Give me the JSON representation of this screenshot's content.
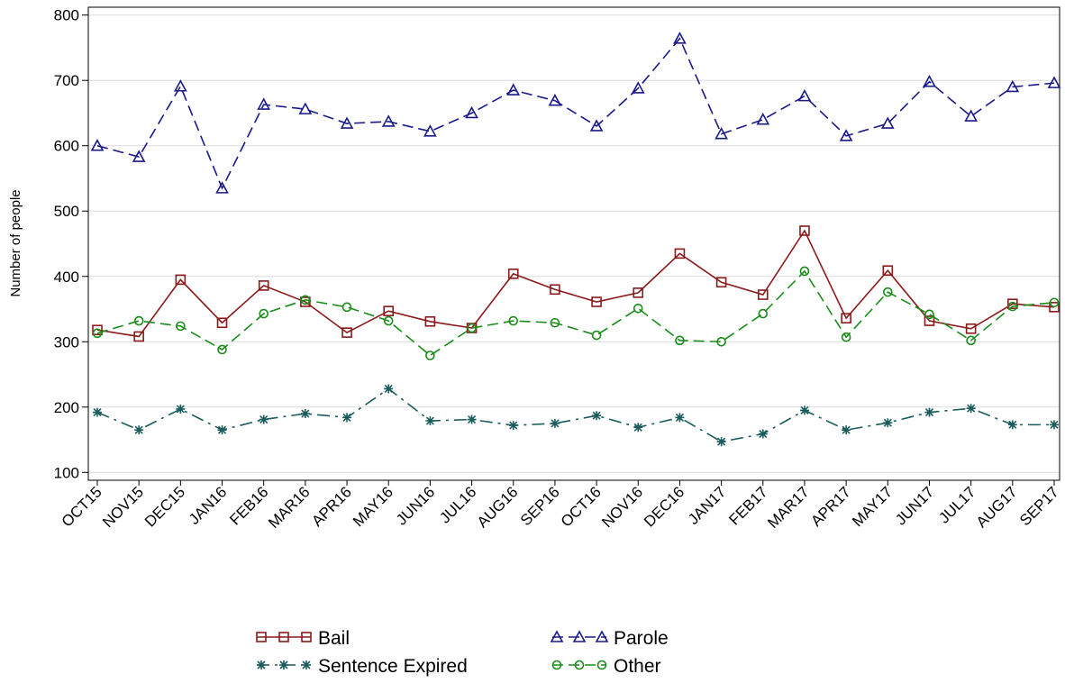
{
  "chart_data": {
    "type": "line",
    "y_label": "Number of people",
    "categories": [
      "OCT15",
      "NOV15",
      "DEC15",
      "JAN16",
      "FEB16",
      "MAR16",
      "APR16",
      "MAY16",
      "JUN16",
      "JUL16",
      "AUG16",
      "SEP16",
      "OCT16",
      "NOV16",
      "DEC16",
      "JAN17",
      "FEB17",
      "MAR17",
      "APR17",
      "MAY17",
      "JUN17",
      "JUL17",
      "AUG17",
      "SEP17"
    ],
    "series": [
      {
        "name": "Bail",
        "color": "#8b1a1a",
        "line_style": "solid",
        "marker": "square",
        "values": [
          318,
          308,
          395,
          329,
          386,
          361,
          314,
          347,
          331,
          321,
          404,
          380,
          361,
          375,
          435,
          391,
          372,
          470,
          336,
          409,
          332,
          320,
          358,
          353
        ]
      },
      {
        "name": "Parole",
        "color": "#1a1a8b",
        "line_style": "dashed",
        "marker": "triangle",
        "values": [
          600,
          583,
          691,
          535,
          663,
          656,
          634,
          637,
          622,
          650,
          685,
          669,
          630,
          688,
          764,
          618,
          640,
          676,
          615,
          634,
          698,
          645,
          690,
          696
        ]
      },
      {
        "name": "Sentence Expired",
        "color": "#1a5c5c",
        "line_style": "dashdot",
        "marker": "star",
        "values": [
          192,
          165,
          197,
          165,
          181,
          190,
          184,
          228,
          179,
          181,
          172,
          175,
          187,
          169,
          184,
          147,
          159,
          195,
          165,
          176,
          192,
          198,
          173,
          173
        ]
      },
      {
        "name": "Other",
        "color": "#1a8c1a",
        "line_style": "dashed",
        "marker": "circle",
        "values": [
          313,
          332,
          324,
          288,
          343,
          364,
          353,
          332,
          279,
          321,
          332,
          329,
          310,
          351,
          302,
          300,
          343,
          408,
          307,
          376,
          342,
          302,
          354,
          360
        ]
      }
    ],
    "ylim": [
      88,
      812
    ],
    "yticks": [
      100,
      200,
      300,
      400,
      500,
      600,
      700,
      800
    ],
    "grid": true
  }
}
